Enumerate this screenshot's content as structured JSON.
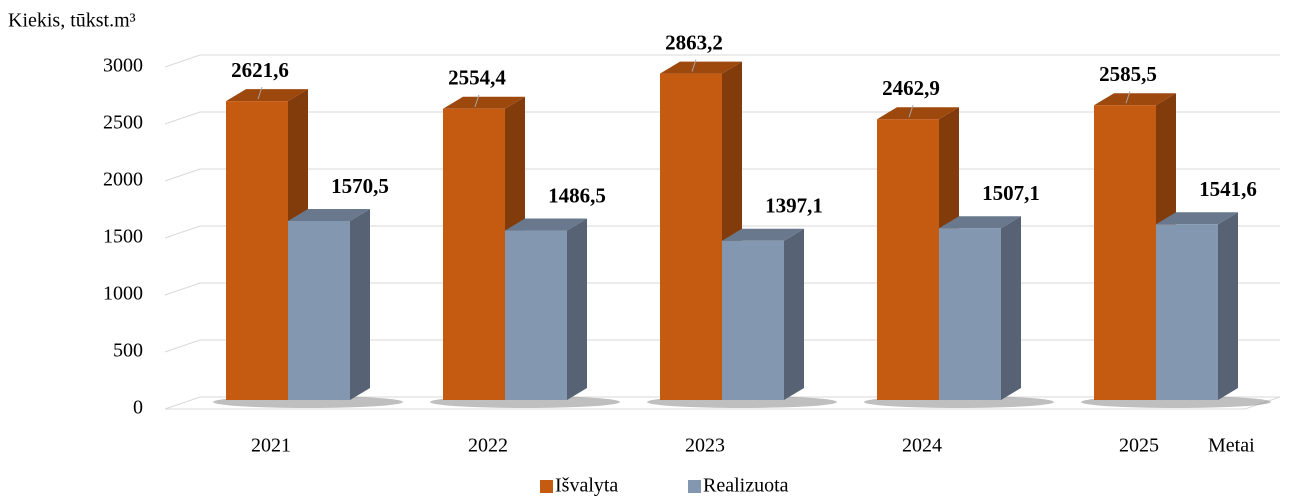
{
  "chart_data": {
    "type": "bar3d",
    "y_axis_label": "Kiekis, tūkst.m³",
    "x_axis_label": "Metai",
    "categories": [
      "2021",
      "2022",
      "2023",
      "2024",
      "2025"
    ],
    "series": [
      {
        "name": "Išvalyta",
        "color": "#c55a11",
        "values": [
          2621.6,
          2554.4,
          2863.2,
          2462.9,
          2585.5
        ],
        "value_labels": [
          "2621,6",
          "2554,4",
          "2863,2",
          "2462,9",
          "2585,5"
        ]
      },
      {
        "name": "Realizuota",
        "color": "#8497b0",
        "values": [
          1570.5,
          1486.5,
          1397.1,
          1507.1,
          1541.6
        ],
        "value_labels": [
          "1570,5",
          "1486,5",
          "1397,1",
          "1507,1",
          "1541,6"
        ]
      }
    ],
    "ylim": [
      0,
      3000
    ],
    "yticks": [
      0,
      500,
      1000,
      1500,
      2000,
      2500,
      3000
    ],
    "grid": true,
    "legend": "bottom"
  }
}
